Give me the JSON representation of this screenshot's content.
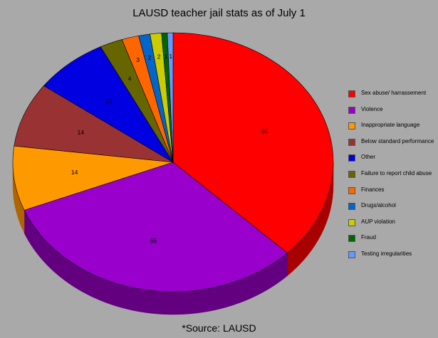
{
  "chart_data": {
    "type": "pie",
    "title": "LAUSD teacher jail stats as of July 1",
    "source": "*Source: LAUSD",
    "slices": [
      {
        "label": "Sex abuse/ harrassement",
        "value": 65,
        "color": "#ff0000",
        "side": "#a80000"
      },
      {
        "label": "Violence",
        "value": 55,
        "color": "#9900cc",
        "side": "#63007f"
      },
      {
        "label": "Inappropriate language",
        "value": 14,
        "color": "#ff9900",
        "side": "#b06400"
      },
      {
        "label": "Below standard performance",
        "value": 14,
        "color": "#993333",
        "side": "#5e1e1e"
      },
      {
        "label": "Other",
        "value": 13,
        "color": "#0000e0",
        "side": "#00008a"
      },
      {
        "label": "Failure to report child abuse",
        "value": 4,
        "color": "#666600",
        "side": "#3d3d00"
      },
      {
        "label": "Finances",
        "value": 3,
        "color": "#ff6600",
        "side": "#a84300"
      },
      {
        "label": "Drugs/alcohol",
        "value": 2,
        "color": "#0066cc",
        "side": "#00407f"
      },
      {
        "label": "AUP violation",
        "value": 2,
        "color": "#cccc00",
        "side": "#808000"
      },
      {
        "label": "Fraud",
        "value": 1,
        "color": "#006600",
        "side": "#003d00"
      },
      {
        "label": "Testing irregularities",
        "value": 1,
        "color": "#6699ff",
        "side": "#3d5eaa"
      }
    ],
    "legend_position": "right",
    "data_labels": true
  }
}
